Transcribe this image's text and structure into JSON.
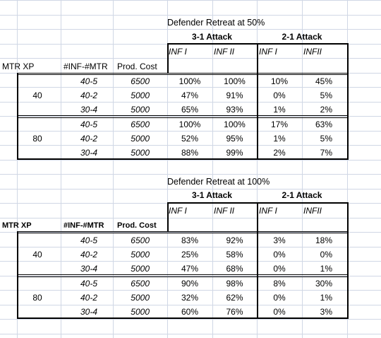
{
  "sheet": {
    "sections": [
      {
        "title": "Defender Retreat at 50%",
        "header_left": [
          "MTR XP",
          "#INF-#MTR",
          "Prod. Cost"
        ],
        "attack_groups": [
          "3-1 Attack",
          "2-1 Attack"
        ],
        "col_labels": [
          "INF I",
          "INF II",
          "INF I",
          "INFII"
        ],
        "groups": [
          {
            "mtr_xp": "40",
            "rows": [
              {
                "mix": "40-5",
                "cost": "6500",
                "v": [
                  "100%",
                  "100%",
                  "10%",
                  "45%"
                ]
              },
              {
                "mix": "40-2",
                "cost": "5000",
                "v": [
                  "47%",
                  "91%",
                  "0%",
                  "5%"
                ]
              },
              {
                "mix": "30-4",
                "cost": "5000",
                "v": [
                  "65%",
                  "93%",
                  "1%",
                  "2%"
                ]
              }
            ]
          },
          {
            "mtr_xp": "80",
            "rows": [
              {
                "mix": "40-5",
                "cost": "6500",
                "v": [
                  "100%",
                  "100%",
                  "17%",
                  "63%"
                ]
              },
              {
                "mix": "40-2",
                "cost": "5000",
                "v": [
                  "52%",
                  "95%",
                  "1%",
                  "5%"
                ]
              },
              {
                "mix": "30-4",
                "cost": "5000",
                "v": [
                  "88%",
                  "99%",
                  "2%",
                  "7%"
                ]
              }
            ]
          }
        ]
      },
      {
        "title": "Defender Retreat at 100%",
        "header_left": [
          "MTR XP",
          "#INF-#MTR",
          "Prod. Cost"
        ],
        "attack_groups": [
          "3-1 Attack",
          "2-1 Attack"
        ],
        "col_labels": [
          "INF I",
          "INF II",
          "INF I",
          "INFII"
        ],
        "groups": [
          {
            "mtr_xp": "40",
            "rows": [
              {
                "mix": "40-5",
                "cost": "6500",
                "v": [
                  "83%",
                  "92%",
                  "3%",
                  "18%"
                ]
              },
              {
                "mix": "40-2",
                "cost": "5000",
                "v": [
                  "25%",
                  "58%",
                  "0%",
                  "0%"
                ]
              },
              {
                "mix": "30-4",
                "cost": "5000",
                "v": [
                  "47%",
                  "68%",
                  "0%",
                  "1%"
                ]
              }
            ]
          },
          {
            "mtr_xp": "80",
            "rows": [
              {
                "mix": "40-5",
                "cost": "6500",
                "v": [
                  "90%",
                  "98%",
                  "8%",
                  "30%"
                ]
              },
              {
                "mix": "40-2",
                "cost": "5000",
                "v": [
                  "32%",
                  "62%",
                  "0%",
                  "1%"
                ]
              },
              {
                "mix": "30-4",
                "cost": "5000",
                "v": [
                  "60%",
                  "76%",
                  "0%",
                  "3%"
                ]
              }
            ]
          }
        ]
      }
    ]
  }
}
